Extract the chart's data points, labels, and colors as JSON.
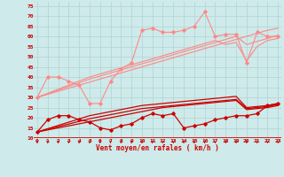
{
  "x": [
    0,
    1,
    2,
    3,
    4,
    5,
    6,
    7,
    8,
    9,
    10,
    11,
    12,
    13,
    14,
    15,
    16,
    17,
    18,
    19,
    20,
    21,
    22,
    23
  ],
  "pale_zigzag": [
    30,
    40,
    40,
    38,
    36,
    27,
    27,
    38,
    44,
    47,
    63,
    64,
    62,
    62,
    63,
    65,
    72,
    60,
    61,
    61,
    47,
    62,
    60,
    60
  ],
  "pale_slope1": [
    30,
    31.5,
    33,
    34.5,
    36,
    37.5,
    39,
    40.5,
    42,
    43.5,
    45,
    46.5,
    48,
    49.5,
    51,
    52.5,
    54,
    55.5,
    57,
    58.5,
    60,
    61.5,
    63,
    64
  ],
  "pale_slope2": [
    30,
    31.8,
    33.6,
    35.4,
    37.2,
    39,
    40.5,
    42,
    43.5,
    45,
    46.5,
    48,
    49.5,
    51,
    52.5,
    54,
    55.5,
    57,
    58.5,
    60,
    56,
    57.5,
    59,
    60.5
  ],
  "pale_slope3": [
    30,
    32,
    34,
    36,
    38,
    40,
    41.5,
    43,
    44.5,
    46,
    47.5,
    49,
    50.5,
    52,
    53.5,
    55,
    56.5,
    58,
    56,
    57,
    48,
    55,
    58,
    59
  ],
  "dark_zigzag": [
    13,
    19,
    21,
    21,
    19,
    18,
    15,
    14,
    16,
    17,
    20,
    22,
    21,
    22,
    15,
    16,
    17,
    19,
    20,
    21,
    21,
    22,
    26,
    27
  ],
  "dark_slope1": [
    13,
    14,
    15,
    16,
    17,
    18,
    19,
    20,
    21,
    22,
    23,
    24,
    25,
    25.5,
    26,
    26.5,
    27,
    27.5,
    28,
    28.5,
    24,
    24.5,
    25,
    26
  ],
  "dark_slope2": [
    13,
    14.3,
    15.6,
    16.9,
    18.2,
    19.5,
    20.5,
    21.5,
    22.5,
    23.5,
    24.5,
    25,
    25.5,
    26,
    26.5,
    27,
    27.5,
    28,
    28.5,
    29,
    24.5,
    25,
    25.5,
    26.5
  ],
  "dark_slope3": [
    13,
    14.6,
    16.2,
    17.8,
    19.4,
    21,
    22,
    23,
    24,
    25,
    26,
    26.5,
    27,
    27.5,
    28,
    28.5,
    29,
    29.5,
    30,
    30.5,
    25,
    25.5,
    26,
    27
  ],
  "ylim": [
    10,
    77
  ],
  "xlim": [
    -0.3,
    23.3
  ],
  "yticks": [
    10,
    15,
    20,
    25,
    30,
    35,
    40,
    45,
    50,
    55,
    60,
    65,
    70,
    75
  ],
  "xlabel": "Vent moyen/en rafales ( km/h )",
  "bg_color": "#ceeaea",
  "grid_color": "#b0d4d4",
  "dark_red": "#cc0000",
  "light_red": "#ff8888"
}
